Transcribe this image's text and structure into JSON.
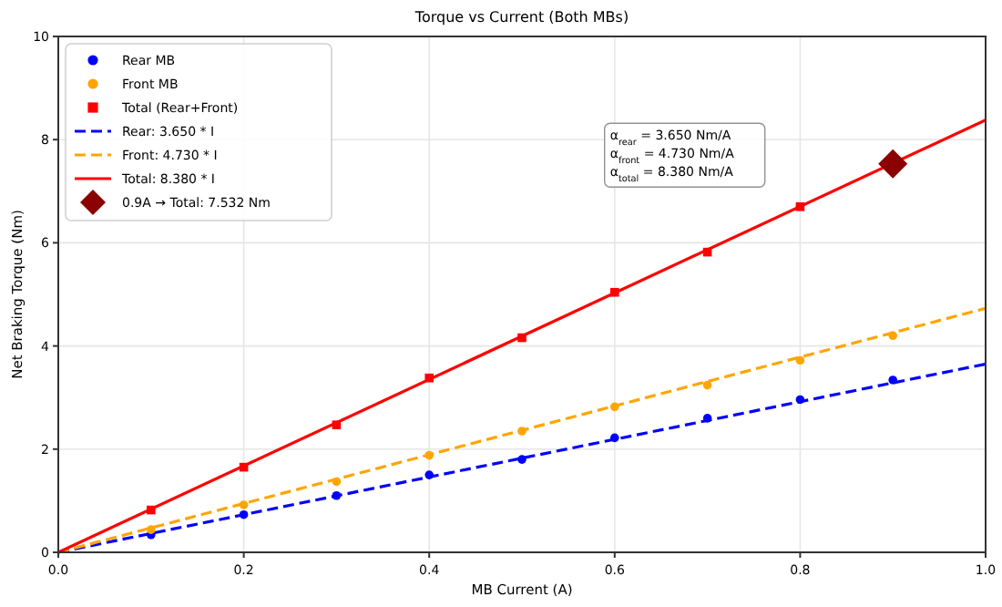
{
  "chart_data": {
    "type": "scatter",
    "title": "Torque vs Current (Both MBs)",
    "xlabel": "MB Current (A)",
    "ylabel": "Net Braking Torque (Nm)",
    "xlim": [
      0,
      1
    ],
    "xticks": [
      {
        "value": 0,
        "label": "0.0"
      },
      {
        "value": 0.2,
        "label": "0.2"
      },
      {
        "value": 0.4,
        "label": "0.4"
      },
      {
        "value": 0.6,
        "label": "0.6"
      },
      {
        "value": 0.8,
        "label": "0.8"
      },
      {
        "value": 1,
        "label": "1.0"
      }
    ],
    "ylim": [
      0,
      10
    ],
    "yticks": [
      0,
      2,
      4,
      6,
      8,
      10
    ],
    "grid": true,
    "legend": "top left",
    "x": [
      0.1,
      0.2,
      0.3,
      0.4,
      0.5,
      0.6,
      0.7,
      0.8,
      0.9
    ],
    "series": [
      {
        "name": "Rear MB",
        "marker": "circle",
        "color": "#0000ff",
        "values": [
          0.34,
          0.73,
          1.1,
          1.5,
          1.8,
          2.22,
          2.6,
          2.96,
          3.34
        ]
      },
      {
        "name": "Front MB",
        "marker": "circle",
        "color": "#ffa500",
        "values": [
          0.44,
          0.92,
          1.37,
          1.88,
          2.35,
          2.82,
          3.24,
          3.72,
          4.2
        ]
      },
      {
        "name": "Total (Rear+Front)",
        "marker": "square",
        "color": "#ff0000",
        "values": [
          0.82,
          1.65,
          2.47,
          3.38,
          4.16,
          5.04,
          5.82,
          6.7,
          null
        ]
      },
      {
        "name": "Rear: 3.650 * I",
        "type": "line",
        "marker": "none",
        "line_style": "dashed",
        "color": "#0000ff",
        "x": [
          0,
          1
        ],
        "values": [
          0,
          3.65
        ]
      },
      {
        "name": "Front: 4.730 * I",
        "type": "line",
        "marker": "none",
        "line_style": "dashed",
        "color": "#ffa500",
        "x": [
          0,
          1
        ],
        "values": [
          0,
          4.73
        ]
      },
      {
        "name": "Total: 8.380 * I",
        "type": "line",
        "marker": "none",
        "line_style": "solid",
        "color": "#ff0000",
        "x": [
          0,
          1
        ],
        "values": [
          0,
          8.38
        ]
      },
      {
        "name": "0.9A → Total: 7.532 Nm",
        "marker": "diamond",
        "color": "#8b0000",
        "x": [
          0.9
        ],
        "values": [
          7.532
        ]
      }
    ],
    "annotations": [
      "α$_{rear}$ = 3.650 Nm/A",
      "α$_{front}$ = 4.730 Nm/A",
      "α$_{total}$ = 8.380 Nm/A"
    ]
  }
}
